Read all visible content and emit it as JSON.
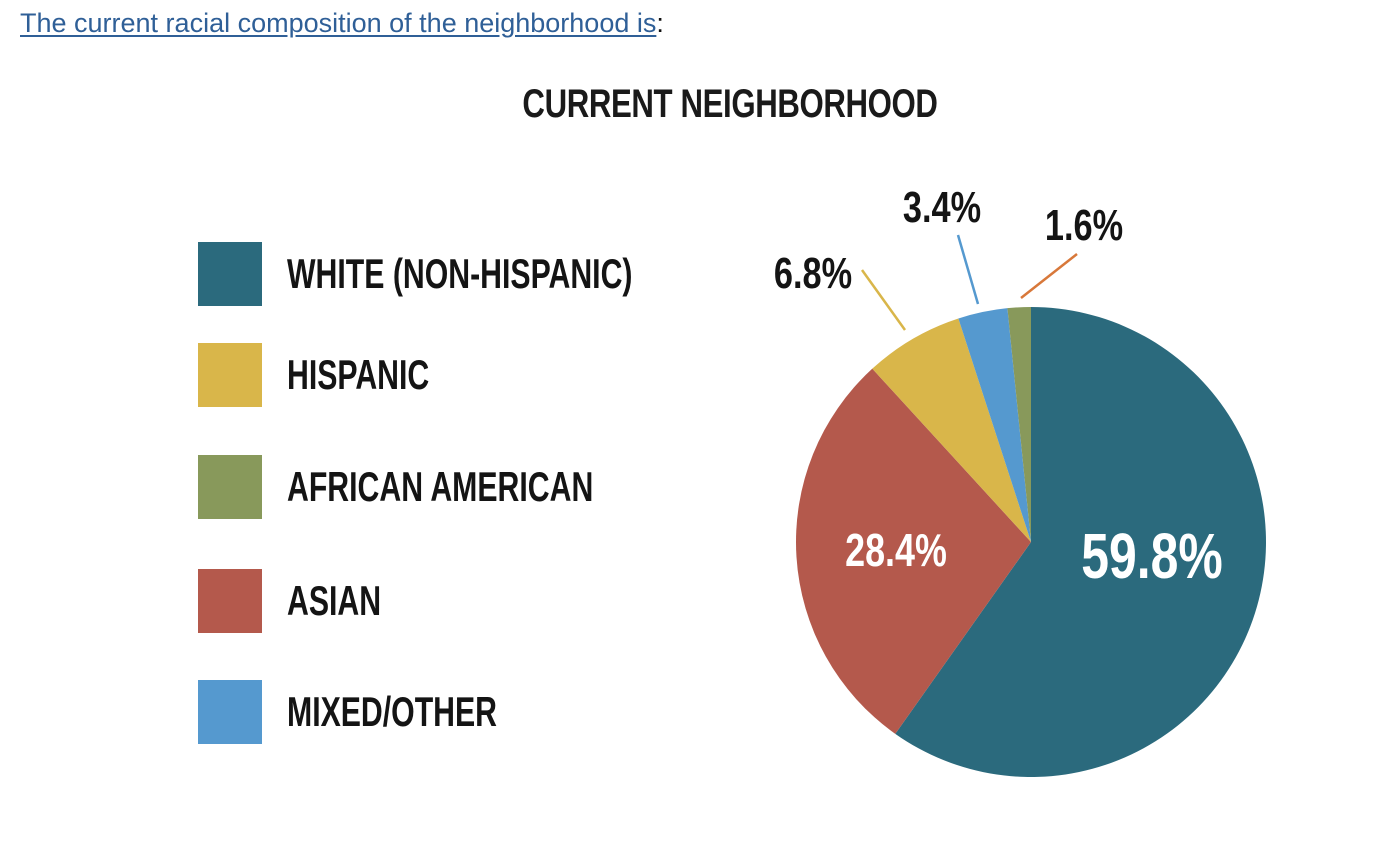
{
  "intro": {
    "link_text": "The current racial composition of the neighborhood is",
    "trailing": ":"
  },
  "chart_data": {
    "type": "pie",
    "title": "CURRENT NEIGHBORHOOD",
    "categories": [
      "WHITE (NON-HISPANIC)",
      "HISPANIC",
      "AFRICAN AMERICAN",
      "ASIAN",
      "MIXED/OTHER"
    ],
    "values": [
      59.8,
      6.8,
      1.6,
      28.4,
      3.4
    ],
    "value_labels": [
      "59.8%",
      "6.8%",
      "1.6%",
      "28.4%",
      "3.4%"
    ],
    "colors": [
      "#2b6a7d",
      "#d9b64a",
      "#88995b",
      "#b4594c",
      "#5599cf"
    ],
    "slice_order_clockwise_from_top": [
      "WHITE (NON-HISPANIC)",
      "ASIAN",
      "HISPANIC",
      "MIXED/OTHER",
      "AFRICAN AMERICAN"
    ],
    "leader_line_colors": {
      "HISPANIC": "#d9b64a",
      "MIXED/OTHER": "#5599cf",
      "AFRICAN AMERICAN": "#d8783a"
    },
    "legend_position": "left"
  }
}
